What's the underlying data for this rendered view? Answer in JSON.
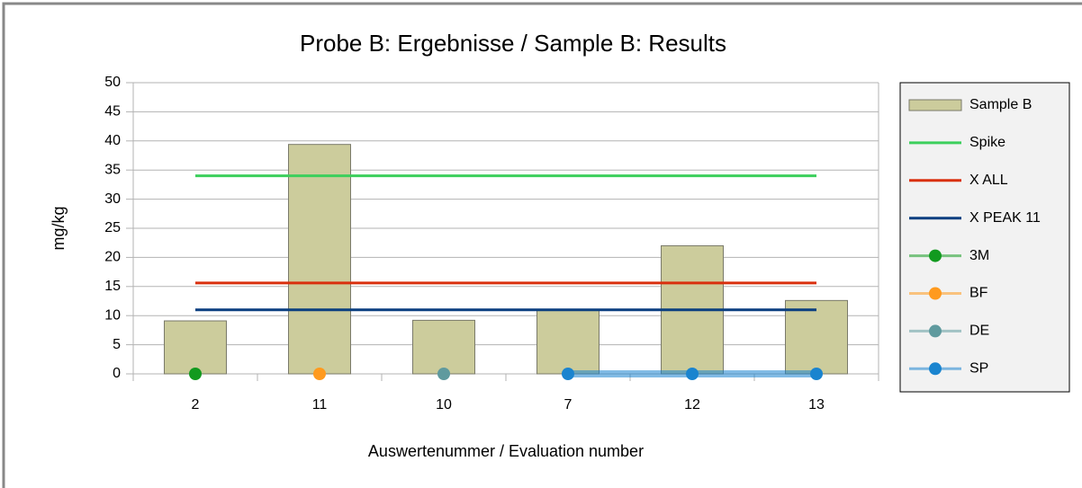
{
  "chart_data": {
    "type": "bar",
    "title": "Probe B: Ergebnisse / Sample B: Results",
    "x_label": "Auswertenummer / Evaluation number",
    "y_label": "mg/kg",
    "categories": [
      "2",
      "11",
      "10",
      "7",
      "12",
      "13"
    ],
    "ylim": [
      0,
      50
    ],
    "yticks": [
      0,
      5,
      10,
      15,
      20,
      25,
      30,
      35,
      40,
      45,
      50
    ],
    "grid": true,
    "legend": "right",
    "series": [
      {
        "name": "Sample B",
        "type": "bar",
        "color": "#cccc9c",
        "values": [
          9.1,
          39.4,
          9.2,
          11,
          22,
          12.6
        ]
      },
      {
        "name": "Spike",
        "type": "line",
        "color": "#3ccf5c",
        "values": [
          34,
          34,
          34,
          34,
          34,
          34
        ]
      },
      {
        "name": "X ALL",
        "type": "line",
        "color": "#d9300e",
        "values": [
          15.6,
          15.6,
          15.6,
          15.6,
          15.6,
          15.6
        ]
      },
      {
        "name": "X PEAK 11",
        "type": "line",
        "color": "#0b3f80",
        "values": [
          11,
          11,
          11,
          11,
          11,
          11
        ]
      },
      {
        "name": "3M",
        "type": "point",
        "color": "#129a1f",
        "values": [
          0,
          null,
          null,
          null,
          null,
          null
        ]
      },
      {
        "name": "BF",
        "type": "point",
        "color": "#ff9a1e",
        "values": [
          null,
          0,
          null,
          null,
          null,
          null
        ]
      },
      {
        "name": "DE",
        "type": "point",
        "color": "#5f9a9e",
        "values": [
          null,
          null,
          0,
          null,
          null,
          null
        ]
      },
      {
        "name": "SP",
        "type": "point",
        "color": "#1a84cf",
        "values": [
          null,
          null,
          null,
          0,
          0,
          0
        ]
      }
    ]
  }
}
